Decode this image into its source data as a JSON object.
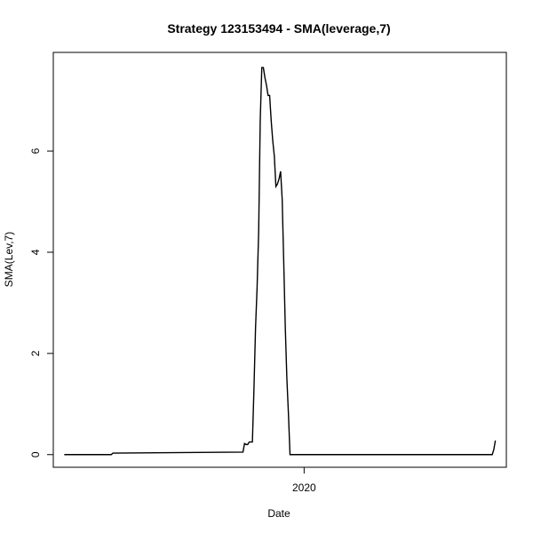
{
  "chart_data": {
    "type": "line",
    "title": "Strategy 123153494 - SMA(leverage,7)",
    "xlabel": "Date",
    "ylabel": "SMA(Lev,7)",
    "x_ticks": [
      {
        "label": "2020",
        "value": "2020-01-01"
      }
    ],
    "y_ticks": [
      0,
      2,
      4,
      6
    ],
    "xlim": [
      "2019-07-25",
      "2020-05-09"
    ],
    "ylim": [
      -0.25,
      7.95
    ],
    "grid": false,
    "legend": "none",
    "line_color": "#000000",
    "series": [
      {
        "x": [
          "2019-08-01",
          "2019-08-31",
          "2019-09-01",
          "2019-09-02",
          "2019-11-23",
          "2019-11-24",
          "2019-11-25",
          "2019-11-26",
          "2019-11-27",
          "2019-11-28",
          "2019-11-29",
          "2019-11-30",
          "2019-12-01",
          "2019-12-02",
          "2019-12-03",
          "2019-12-04",
          "2019-12-05",
          "2019-12-06",
          "2019-12-07",
          "2019-12-08",
          "2019-12-09",
          "2019-12-10",
          "2019-12-11",
          "2019-12-12",
          "2019-12-13",
          "2019-12-14",
          "2019-12-15",
          "2019-12-16",
          "2019-12-17",
          "2019-12-18",
          "2019-12-19",
          "2019-12-20",
          "2019-12-21",
          "2019-12-22",
          "2019-12-23",
          "2019-12-24",
          "2019-12-25",
          "2019-12-26",
          "2019-12-27",
          "2019-12-28",
          "2019-12-29",
          "2019-12-30",
          "2020-04-30",
          "2020-05-01",
          "2020-05-02"
        ],
        "y": [
          0.0,
          0.0,
          0.03,
          0.03,
          0.05,
          0.22,
          0.2,
          0.2,
          0.25,
          0.25,
          0.25,
          1.3,
          2.5,
          3.3,
          4.4,
          6.6,
          7.65,
          7.65,
          7.45,
          7.3,
          7.1,
          7.1,
          6.6,
          6.2,
          5.9,
          5.3,
          5.35,
          5.45,
          5.6,
          5.05,
          3.8,
          2.5,
          1.5,
          0.8,
          0.0,
          0.0,
          0.0,
          0.0,
          0.0,
          0.0,
          0.0,
          0.0,
          0.0,
          0.1,
          0.28
        ]
      }
    ]
  }
}
